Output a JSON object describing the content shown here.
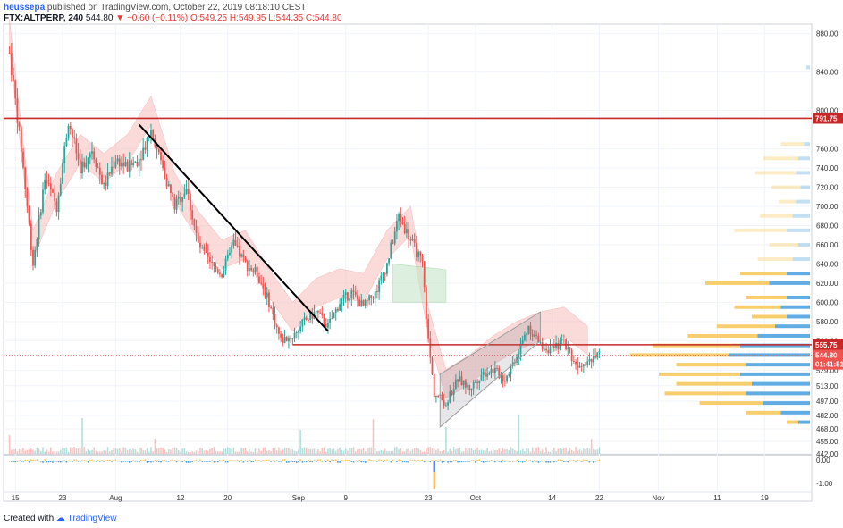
{
  "header": {
    "username": "heussepa",
    "published_text": "published on TradingView.com, October 22, 2019 08:18:10 CEST",
    "symbol": "FTX:ALTPERP, 240",
    "last_price": "544.80",
    "change": "−0.60 (−0.11%)",
    "ohlc": "O:549.25 H:549.95 L:544.35 C:544.80"
  },
  "footer": {
    "created_with": "Created with",
    "brand": "TradingView"
  },
  "colors": {
    "up_candle": "#26a69a",
    "down_candle": "#ef5350",
    "resistance_line": "#c62828",
    "price_tag": "#ef5350",
    "trendline": "#000000",
    "channel": "#9e9e9e",
    "volume_profile_up": "#f7c85c",
    "volume_profile_down": "#4fa3e0",
    "cloud_bear": "#f8bcbc",
    "cloud_bull": "#c8e6c9"
  },
  "chart_data": {
    "type": "candlestick",
    "symbol": "FTX:ALTPERP",
    "timeframe": "240",
    "y_axis": {
      "range": [
        442,
        890
      ],
      "ticks": [
        "880.00",
        "840.00",
        "800.00",
        "760.00",
        "740.00",
        "720.00",
        "700.00",
        "680.00",
        "660.00",
        "640.00",
        "620.00",
        "600.00",
        "580.00",
        "560.00",
        "529.00",
        "513.00",
        "497.00",
        "482.00",
        "468.00",
        "455.00",
        "442.00"
      ]
    },
    "x_axis": {
      "ticks": [
        "15",
        "23",
        "Aug",
        "12",
        "20",
        "Sep",
        "9",
        "23",
        "Oct",
        "14",
        "22",
        "Nov",
        "11",
        "19"
      ]
    },
    "price_series": [
      [
        "07-14",
        860
      ],
      [
        "07-16",
        760
      ],
      [
        "07-18",
        640
      ],
      [
        "07-20",
        730
      ],
      [
        "07-22",
        700
      ],
      [
        "07-24",
        790
      ],
      [
        "07-26",
        740
      ],
      [
        "07-28",
        760
      ],
      [
        "07-30",
        720
      ],
      [
        "08-01",
        750
      ],
      [
        "08-03",
        740
      ],
      [
        "08-05",
        750
      ],
      [
        "08-07",
        780
      ],
      [
        "08-09",
        740
      ],
      [
        "08-11",
        700
      ],
      [
        "08-13",
        720
      ],
      [
        "08-15",
        660
      ],
      [
        "08-17",
        640
      ],
      [
        "08-19",
        630
      ],
      [
        "08-21",
        660
      ],
      [
        "08-23",
        640
      ],
      [
        "08-25",
        630
      ],
      [
        "08-27",
        600
      ],
      [
        "08-29",
        560
      ],
      [
        "08-31",
        565
      ],
      [
        "09-02",
        580
      ],
      [
        "09-04",
        590
      ],
      [
        "09-06",
        575
      ],
      [
        "09-08",
        600
      ],
      [
        "09-10",
        610
      ],
      [
        "09-12",
        595
      ],
      [
        "09-14",
        610
      ],
      [
        "09-16",
        640
      ],
      [
        "09-18",
        690
      ],
      [
        "09-20",
        665
      ],
      [
        "09-22",
        640
      ],
      [
        "09-23",
        560
      ],
      [
        "09-24",
        505
      ],
      [
        "09-26",
        495
      ],
      [
        "09-28",
        520
      ],
      [
        "09-30",
        510
      ],
      [
        "10-02",
        525
      ],
      [
        "10-04",
        530
      ],
      [
        "10-06",
        520
      ],
      [
        "10-08",
        545
      ],
      [
        "10-10",
        575
      ],
      [
        "10-12",
        555
      ],
      [
        "10-14",
        550
      ],
      [
        "10-16",
        560
      ],
      [
        "10-18",
        535
      ],
      [
        "10-20",
        540
      ],
      [
        "10-22",
        544.8
      ]
    ],
    "horizontal_lines": [
      {
        "price": 791.75,
        "label": "791.75"
      },
      {
        "price": 555.75,
        "label": "555.75"
      }
    ],
    "last_price": {
      "price": 544.8,
      "label": "544.80",
      "countdown": "01:41:51"
    },
    "trendline": {
      "from": [
        "08-05",
        785
      ],
      "to": [
        "09-06",
        570
      ]
    },
    "channel": {
      "lower": [
        [
          "09-25",
          470
        ],
        [
          "10-12",
          560
        ]
      ],
      "upper": [
        [
          "09-25",
          525
        ],
        [
          "10-12",
          590
        ]
      ]
    },
    "oscillator": {
      "ticks": [
        "0.00",
        "-1.00"
      ],
      "range": [
        -1.2,
        0.1
      ]
    },
    "volume_profile": [
      {
        "price": 845,
        "up": 0.0,
        "down": 0.03
      },
      {
        "price": 765,
        "up": 0.2,
        "down": 0.05
      },
      {
        "price": 750,
        "up": 0.3,
        "down": 0.1
      },
      {
        "price": 735,
        "up": 0.35,
        "down": 0.12
      },
      {
        "price": 720,
        "up": 0.25,
        "down": 0.08
      },
      {
        "price": 705,
        "up": 0.15,
        "down": 0.12
      },
      {
        "price": 690,
        "up": 0.28,
        "down": 0.15
      },
      {
        "price": 675,
        "up": 0.45,
        "down": 0.2
      },
      {
        "price": 660,
        "up": 0.25,
        "down": 0.1
      },
      {
        "price": 645,
        "up": 0.3,
        "down": 0.15
      },
      {
        "price": 630,
        "up": 0.4,
        "down": 0.2
      },
      {
        "price": 620,
        "up": 0.55,
        "down": 0.35
      },
      {
        "price": 605,
        "up": 0.35,
        "down": 0.2
      },
      {
        "price": 595,
        "up": 0.4,
        "down": 0.25
      },
      {
        "price": 585,
        "up": 0.3,
        "down": 0.2
      },
      {
        "price": 575,
        "up": 0.5,
        "down": 0.3
      },
      {
        "price": 565,
        "up": 0.6,
        "down": 0.45
      },
      {
        "price": 555,
        "up": 0.75,
        "down": 0.6
      },
      {
        "price": 545,
        "up": 0.85,
        "down": 0.7
      },
      {
        "price": 535,
        "up": 0.6,
        "down": 0.55
      },
      {
        "price": 525,
        "up": 0.7,
        "down": 0.6
      },
      {
        "price": 515,
        "up": 0.65,
        "down": 0.5
      },
      {
        "price": 505,
        "up": 0.7,
        "down": 0.55
      },
      {
        "price": 495,
        "up": 0.55,
        "down": 0.4
      },
      {
        "price": 485,
        "up": 0.3,
        "down": 0.25
      },
      {
        "price": 475,
        "up": 0.1,
        "down": 0.1
      }
    ]
  }
}
